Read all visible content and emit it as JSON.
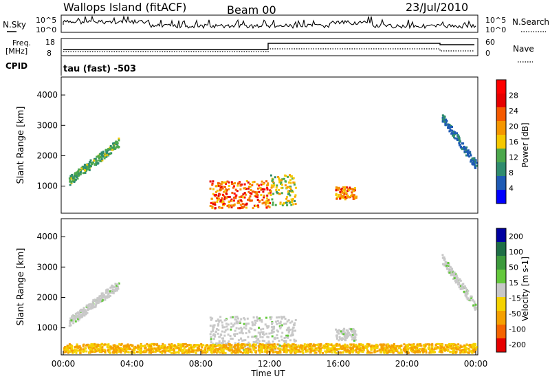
{
  "header": {
    "title": "Wallops Island (fitACF)",
    "beam": "Beam 00",
    "date": "23/Jul/2010"
  },
  "top_panels": {
    "nsky_label": "N.Sky",
    "nsearch_label": "N.Search",
    "nsky_ticks": [
      "10^5",
      "10^0"
    ],
    "nsearch_ticks": [
      "10^5",
      "10^0"
    ],
    "freq_label_line1": "Freq.",
    "freq_label_line2": "[MHz]",
    "freq_ticks": [
      "18",
      "8"
    ],
    "nave_label": "Nave",
    "nave_ticks": [
      "60",
      "0"
    ],
    "cpid_label": "CPID",
    "cpid_value": "tau (fast) -503"
  },
  "colors": {
    "power_scale": [
      "#0000ff",
      "#1e5ab4",
      "#2f8c6e",
      "#4ca84c",
      "#f5c800",
      "#f59600",
      "#f55a00",
      "#e60000",
      "#ff0000"
    ],
    "velocity_scale": [
      "#0000a0",
      "#1e6e46",
      "#3c9a3c",
      "#64c83c",
      "#c8c8c8",
      "#f5d200",
      "#f5a000",
      "#f56400",
      "#e60000"
    ]
  },
  "chart_data": [
    {
      "type": "heatmap",
      "panel": "power",
      "ylabel": "Slant Range [km]",
      "yticks": [
        "1000",
        "2000",
        "3000",
        "4000"
      ],
      "ylim": [
        200,
        4500
      ],
      "xlim": [
        0,
        24
      ],
      "colorbar_label": "Power [dB]",
      "colorbar_ticks": [
        "4",
        "8",
        "12",
        "16",
        "20",
        "24",
        "28"
      ],
      "colorbar_range": [
        0,
        32
      ],
      "features": [
        {
          "t0": 0.3,
          "t1": 3.2,
          "r0": 1200,
          "r1": 2600,
          "level": 14
        },
        {
          "t0": 8.5,
          "t1": 12.0,
          "r0": 300,
          "r1": 1200,
          "level": 28
        },
        {
          "t0": 12.0,
          "t1": 13.5,
          "r0": 400,
          "r1": 1400,
          "level": 18
        },
        {
          "t0": 15.8,
          "t1": 17.0,
          "r0": 600,
          "r1": 1000,
          "level": 26
        },
        {
          "t0": 22.0,
          "t1": 24.0,
          "r0": 1700,
          "r1": 3300,
          "level": 8
        }
      ]
    },
    {
      "type": "heatmap",
      "panel": "velocity",
      "ylabel": "Slant Range [km]",
      "yticks": [
        "1000",
        "2000",
        "3000",
        "4000"
      ],
      "ylim": [
        200,
        4500
      ],
      "xlim": [
        0,
        24
      ],
      "xlabel": "Time UT",
      "xticks": [
        "00:00",
        "04:00",
        "08:00",
        "12:00",
        "16:00",
        "20:00",
        "00:00"
      ],
      "colorbar_label": "Velocity [m s-1]",
      "colorbar_ticks": [
        "200",
        "100",
        "50",
        "15",
        "-15",
        "-50",
        "-100",
        "-200"
      ],
      "features": [
        {
          "t0": 0.3,
          "t1": 3.2,
          "r0": 1200,
          "r1": 2600,
          "velocity": 0
        },
        {
          "t0": 8.5,
          "t1": 13.5,
          "r0": 300,
          "r1": 1400,
          "velocity": 0
        },
        {
          "t0": 15.8,
          "t1": 17.0,
          "r0": 600,
          "r1": 1000,
          "velocity": 0
        },
        {
          "t0": 0.0,
          "t1": 24.0,
          "r0": 200,
          "r1": 500,
          "velocity": -40
        },
        {
          "t0": 22.0,
          "t1": 24.0,
          "r0": 1700,
          "r1": 3300,
          "velocity": 0
        }
      ]
    }
  ]
}
